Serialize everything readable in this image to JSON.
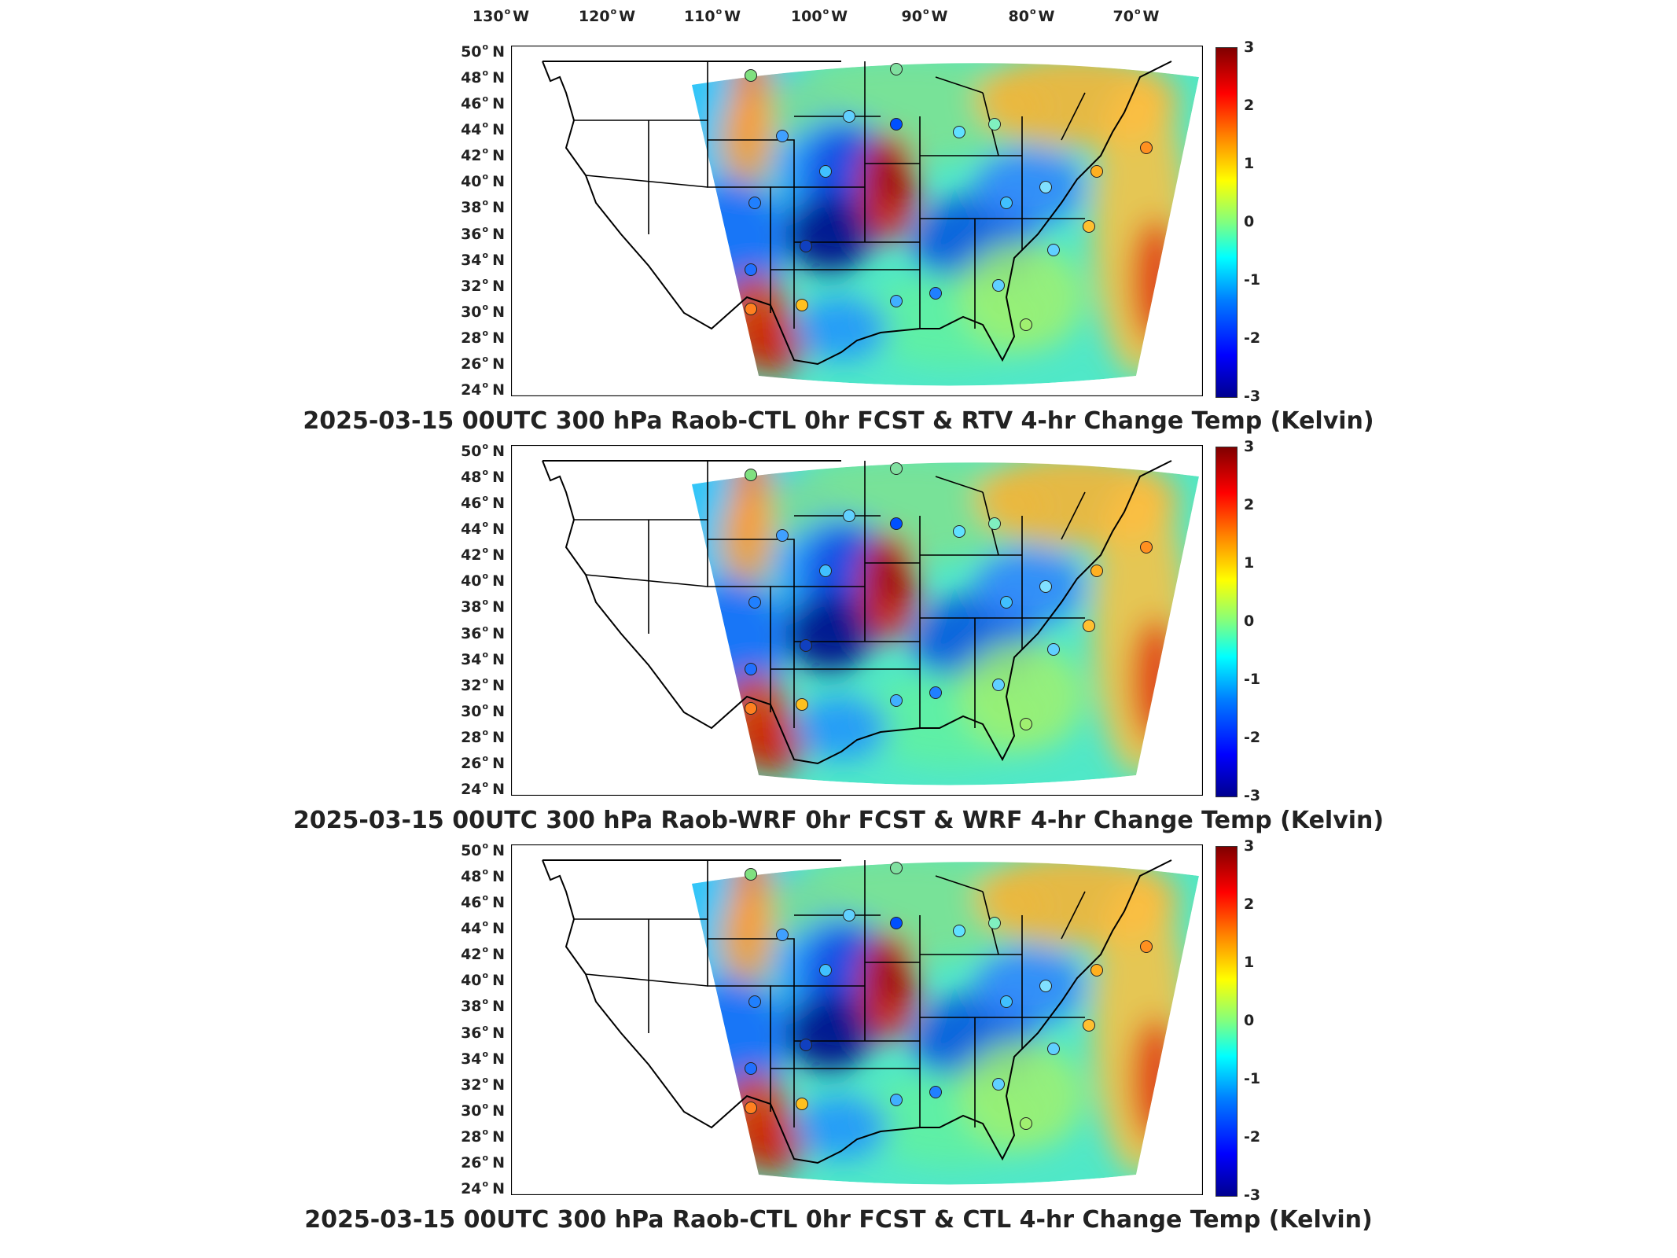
{
  "longitude_labels": [
    {
      "value": "130",
      "dir": "W"
    },
    {
      "value": "120",
      "dir": "W"
    },
    {
      "value": "110",
      "dir": "W"
    },
    {
      "value": "100",
      "dir": "W"
    },
    {
      "value": "90",
      "dir": "W"
    },
    {
      "value": "80",
      "dir": "W"
    },
    {
      "value": "70",
      "dir": "W"
    }
  ],
  "latitude_labels": [
    {
      "value": "50",
      "dir": "N"
    },
    {
      "value": "48",
      "dir": "N"
    },
    {
      "value": "46",
      "dir": "N"
    },
    {
      "value": "44",
      "dir": "N"
    },
    {
      "value": "42",
      "dir": "N"
    },
    {
      "value": "40",
      "dir": "N"
    },
    {
      "value": "38",
      "dir": "N"
    },
    {
      "value": "36",
      "dir": "N"
    },
    {
      "value": "34",
      "dir": "N"
    },
    {
      "value": "32",
      "dir": "N"
    },
    {
      "value": "30",
      "dir": "N"
    },
    {
      "value": "28",
      "dir": "N"
    },
    {
      "value": "26",
      "dir": "N"
    },
    {
      "value": "24",
      "dir": "N"
    }
  ],
  "colorbar": {
    "ticks": [
      "3",
      "2",
      "1",
      "0",
      "-1",
      "-2",
      "-3"
    ],
    "colormap": [
      "#00008f",
      "#0000ff",
      "#0080ff",
      "#00ffff",
      "#80ff80",
      "#ffff00",
      "#ff8000",
      "#ff0000",
      "#800000"
    ]
  },
  "panels": [
    {
      "title": "2025-03-15 00UTC 300 hPa Raob-CTL 0hr FCST & RTV 4-hr Change Temp (Kelvin)"
    },
    {
      "title": "2025-03-15 00UTC 300 hPa Raob-WRF 0hr FCST & WRF 4-hr Change Temp (Kelvin)"
    },
    {
      "title": "2025-03-15 00UTC 300 hPa Raob-CTL 0hr FCST & CTL 4-hr Change Temp (Kelvin)"
    }
  ]
}
